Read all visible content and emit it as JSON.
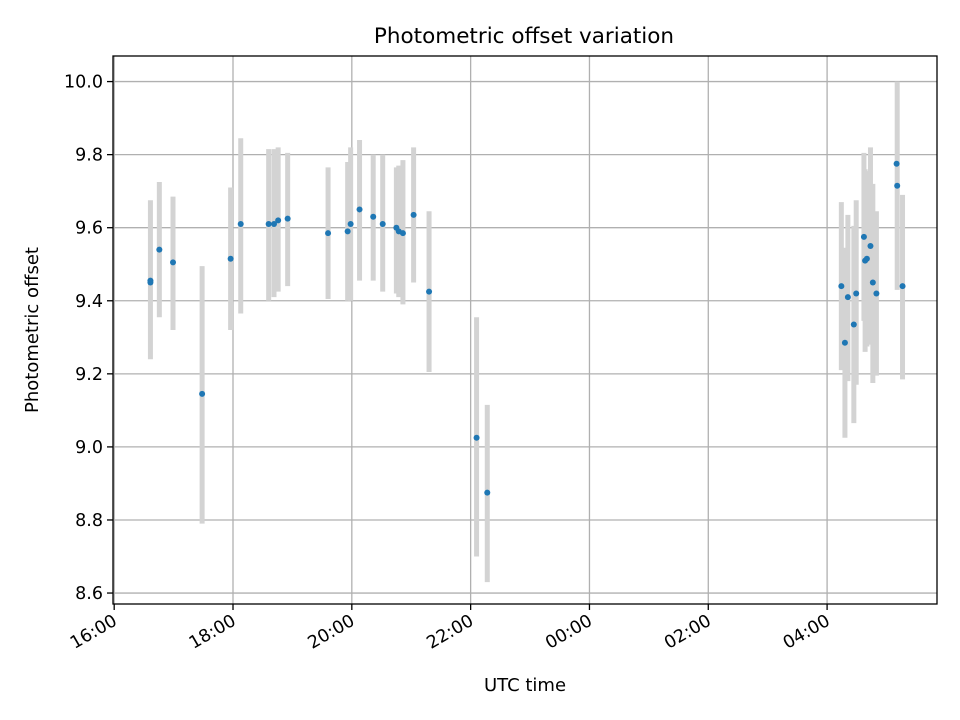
{
  "chart_data": {
    "type": "scatter",
    "title": "Photometric offset variation",
    "xlabel": "UTC time",
    "ylabel": "Photometric offset",
    "x_unit": "UTC time of day (hours; values over 24 are after midnight)",
    "xlim": [
      15.98,
      29.85
    ],
    "ylim": [
      8.57,
      10.07
    ],
    "x_ticks": [
      {
        "value": 16,
        "label": "16:00"
      },
      {
        "value": 18,
        "label": "18:00"
      },
      {
        "value": 20,
        "label": "20:00"
      },
      {
        "value": 22,
        "label": "22:00"
      },
      {
        "value": 24,
        "label": "00:00"
      },
      {
        "value": 26,
        "label": "02:00"
      },
      {
        "value": 28,
        "label": "04:00"
      }
    ],
    "y_ticks": [
      {
        "value": 8.6,
        "label": "8.6"
      },
      {
        "value": 8.8,
        "label": "8.8"
      },
      {
        "value": 9.0,
        "label": "9.0"
      },
      {
        "value": 9.2,
        "label": "9.2"
      },
      {
        "value": 9.4,
        "label": "9.4"
      },
      {
        "value": 9.6,
        "label": "9.6"
      },
      {
        "value": 9.8,
        "label": "9.8"
      },
      {
        "value": 10.0,
        "label": "10.0"
      }
    ],
    "grid": true,
    "colors": {
      "point": "#1f77b4",
      "errorbar": "#d3d3d3",
      "grid": "#b0b0b0"
    },
    "points": [
      {
        "x": 16.61,
        "y": 9.455,
        "err_low": 9.24,
        "err_high": 9.675
      },
      {
        "x": 16.61,
        "y": 9.45
      },
      {
        "x": 16.76,
        "y": 9.54,
        "err_low": 9.355,
        "err_high": 9.725
      },
      {
        "x": 16.99,
        "y": 9.505,
        "err_low": 9.32,
        "err_high": 9.685
      },
      {
        "x": 17.48,
        "y": 9.145,
        "err_low": 8.79,
        "err_high": 9.495
      },
      {
        "x": 17.96,
        "y": 9.515,
        "err_low": 9.32,
        "err_high": 9.71
      },
      {
        "x": 18.13,
        "y": 9.61,
        "err_low": 9.365,
        "err_high": 9.845
      },
      {
        "x": 18.6,
        "y": 9.61,
        "err_low": 9.4,
        "err_high": 9.815
      },
      {
        "x": 18.69,
        "y": 9.61,
        "err_low": 9.41,
        "err_high": 9.815
      },
      {
        "x": 18.76,
        "y": 9.62,
        "err_low": 9.425,
        "err_high": 9.82
      },
      {
        "x": 18.92,
        "y": 9.625,
        "err_low": 9.44,
        "err_high": 9.805
      },
      {
        "x": 19.6,
        "y": 9.585,
        "err_low": 9.405,
        "err_high": 9.765
      },
      {
        "x": 19.93,
        "y": 9.59,
        "err_low": 9.4,
        "err_high": 9.78
      },
      {
        "x": 19.98,
        "y": 9.61,
        "err_low": 9.4,
        "err_high": 9.82
      },
      {
        "x": 20.13,
        "y": 9.65,
        "err_low": 9.455,
        "err_high": 9.84
      },
      {
        "x": 20.36,
        "y": 9.63,
        "err_low": 9.455,
        "err_high": 9.8
      },
      {
        "x": 20.52,
        "y": 9.61,
        "err_low": 9.425,
        "err_high": 9.8
      },
      {
        "x": 20.75,
        "y": 9.6,
        "err_low": 9.42,
        "err_high": 9.765
      },
      {
        "x": 20.79,
        "y": 9.59,
        "err_low": 9.41,
        "err_high": 9.77
      },
      {
        "x": 20.86,
        "y": 9.585,
        "err_low": 9.39,
        "err_high": 9.785
      },
      {
        "x": 21.04,
        "y": 9.635,
        "err_low": 9.45,
        "err_high": 9.82
      },
      {
        "x": 21.3,
        "y": 9.425,
        "err_low": 9.205,
        "err_high": 9.645
      },
      {
        "x": 22.1,
        "y": 9.025,
        "err_low": 8.7,
        "err_high": 9.355
      },
      {
        "x": 22.28,
        "y": 8.875,
        "err_low": 8.63,
        "err_high": 9.115
      },
      {
        "x": 28.24,
        "y": 9.44,
        "err_low": 9.21,
        "err_high": 9.67
      },
      {
        "x": 28.3,
        "y": 9.285,
        "err_low": 9.025,
        "err_high": 9.545
      },
      {
        "x": 28.35,
        "y": 9.41,
        "err_low": 9.18,
        "err_high": 9.635
      },
      {
        "x": 28.45,
        "y": 9.335,
        "err_low": 9.065,
        "err_high": 9.605
      },
      {
        "x": 28.49,
        "y": 9.42,
        "err_low": 9.17,
        "err_high": 9.675
      },
      {
        "x": 28.62,
        "y": 9.575,
        "err_low": 9.345,
        "err_high": 9.805
      },
      {
        "x": 28.64,
        "y": 9.51,
        "err_low": 9.26,
        "err_high": 9.76
      },
      {
        "x": 28.67,
        "y": 9.515,
        "err_low": 9.275,
        "err_high": 9.755
      },
      {
        "x": 28.73,
        "y": 9.55,
        "err_low": 9.28,
        "err_high": 9.82
      },
      {
        "x": 28.77,
        "y": 9.45,
        "err_low": 9.175,
        "err_high": 9.72
      },
      {
        "x": 28.83,
        "y": 9.42,
        "err_low": 9.195,
        "err_high": 9.645
      },
      {
        "x": 29.17,
        "y": 9.775
      },
      {
        "x": 29.18,
        "y": 9.715,
        "err_low": 9.43,
        "err_high": 10.0
      },
      {
        "x": 29.27,
        "y": 9.44,
        "err_low": 9.185,
        "err_high": 9.69
      }
    ]
  }
}
